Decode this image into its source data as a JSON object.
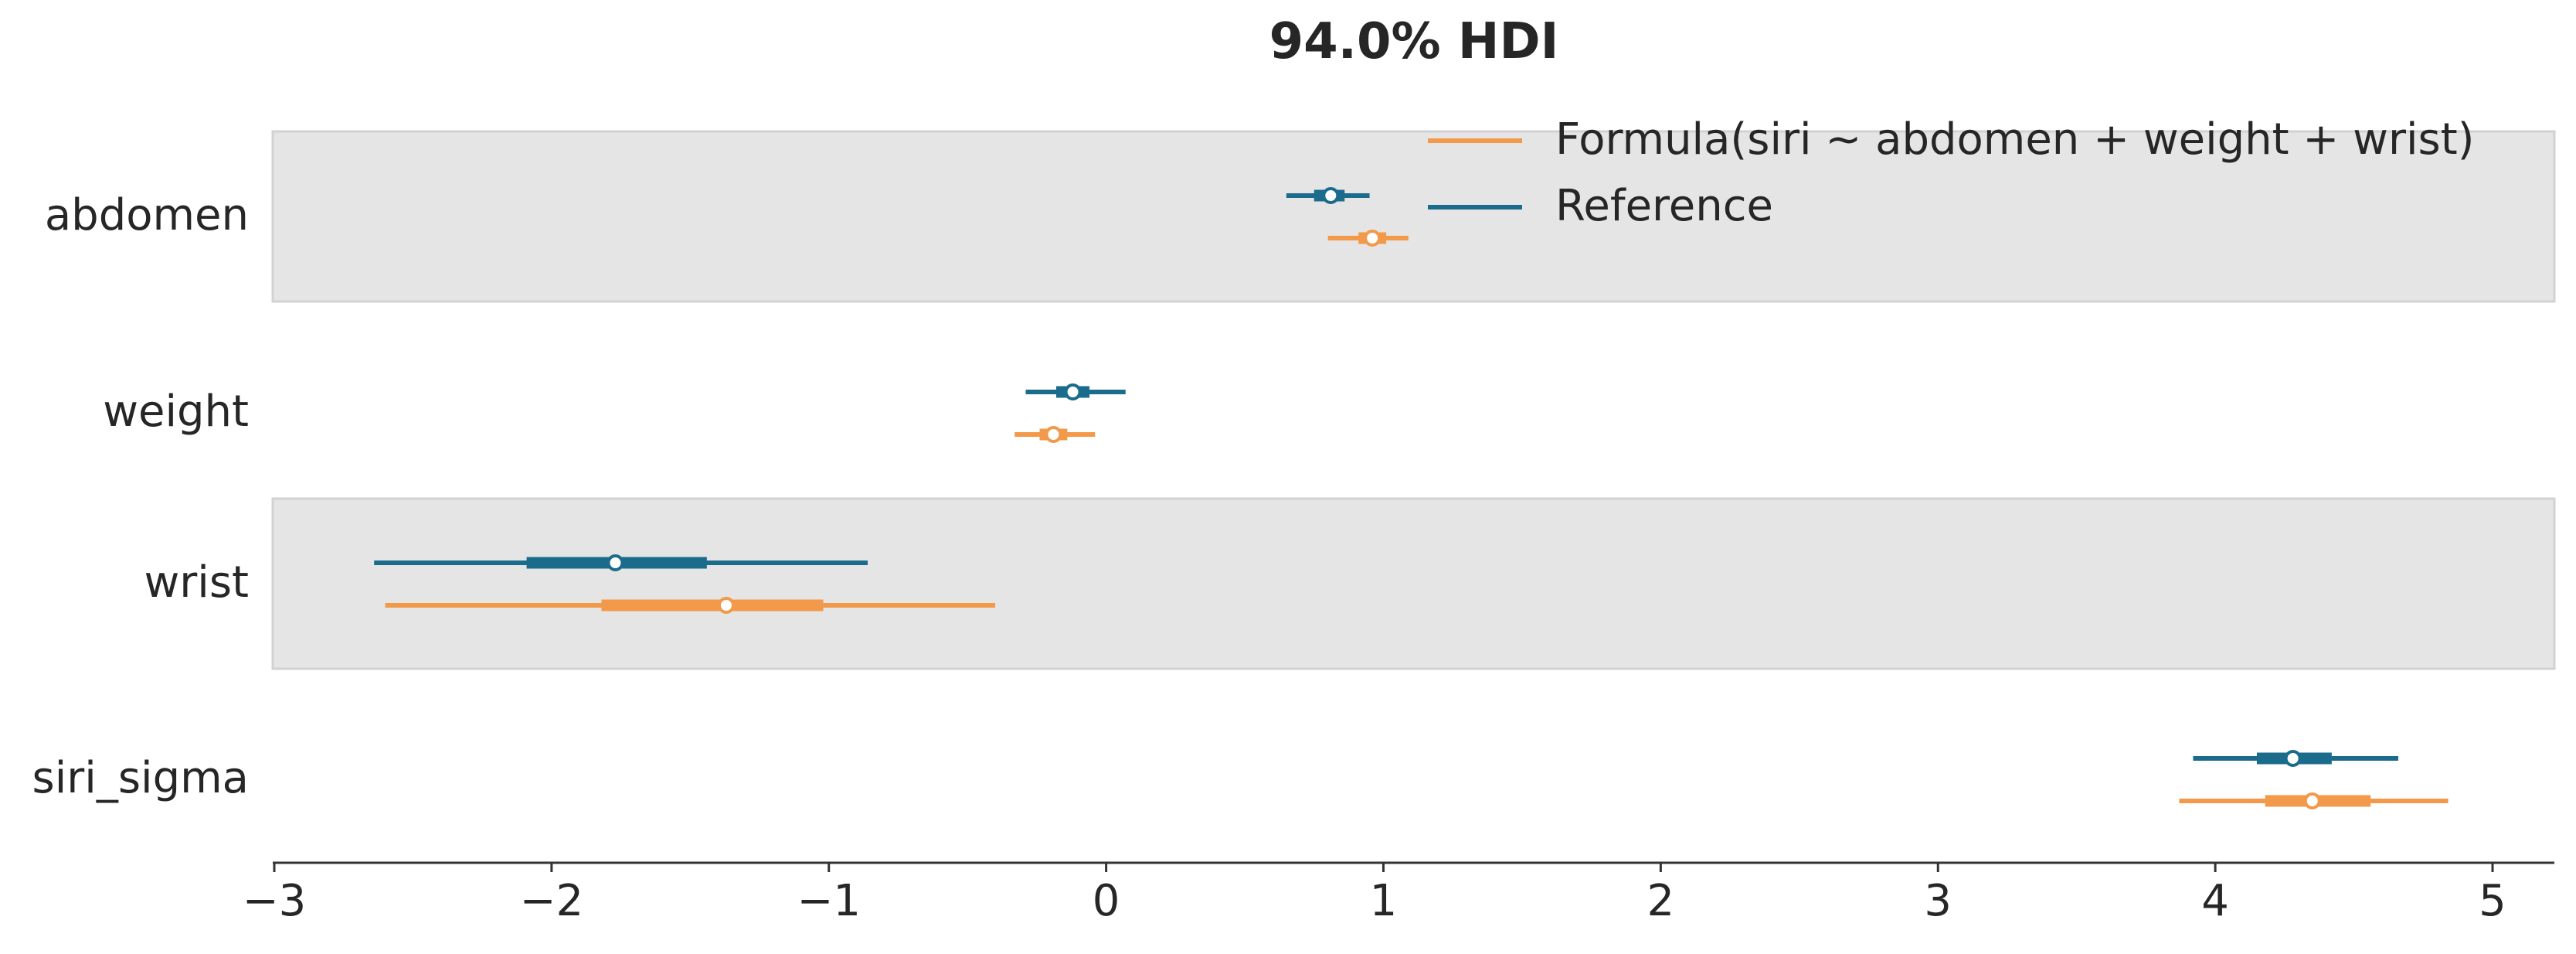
{
  "chart_data": {
    "type": "forest",
    "title": "94.0% HDI",
    "xlabel": "",
    "ylabel": "",
    "xlim": [
      -3.0,
      5.2
    ],
    "xticks": [
      -3,
      -2,
      -1,
      0,
      1,
      2,
      3,
      4,
      5
    ],
    "xtick_labels": [
      "−3",
      "−2",
      "−1",
      "0",
      "1",
      "2",
      "3",
      "4",
      "5"
    ],
    "grid": false,
    "legend_position": "top-right",
    "parameters": [
      "abdomen",
      "weight",
      "wrist",
      "siri_sigma"
    ],
    "series": [
      {
        "name": "Formula(siri ~ abdomen + weight + wrist)",
        "color": "#f2994a",
        "estimates": [
          {
            "parameter": "abdomen",
            "hdi94": [
              0.8,
              1.09
            ],
            "iqr": [
              0.91,
              1.01
            ],
            "point": 0.96
          },
          {
            "parameter": "weight",
            "hdi94": [
              -0.33,
              -0.04
            ],
            "iqr": [
              -0.24,
              -0.14
            ],
            "point": -0.19
          },
          {
            "parameter": "wrist",
            "hdi94": [
              -2.6,
              -0.4
            ],
            "iqr": [
              -1.82,
              -1.02
            ],
            "point": -1.37
          },
          {
            "parameter": "siri_sigma",
            "hdi94": [
              3.87,
              4.84
            ],
            "iqr": [
              4.18,
              4.56
            ],
            "point": 4.35
          }
        ]
      },
      {
        "name": "Reference",
        "color": "#1a6b8c",
        "estimates": [
          {
            "parameter": "abdomen",
            "hdi94": [
              0.65,
              0.95
            ],
            "iqr": [
              0.75,
              0.86
            ],
            "point": 0.81
          },
          {
            "parameter": "weight",
            "hdi94": [
              -0.29,
              0.07
            ],
            "iqr": [
              -0.18,
              -0.06
            ],
            "point": -0.12
          },
          {
            "parameter": "wrist",
            "hdi94": [
              -2.64,
              -0.86
            ],
            "iqr": [
              -2.09,
              -1.44
            ],
            "point": -1.77
          },
          {
            "parameter": "siri_sigma",
            "hdi94": [
              3.92,
              4.66
            ],
            "iqr": [
              4.15,
              4.42
            ],
            "point": 4.28
          }
        ]
      }
    ]
  }
}
